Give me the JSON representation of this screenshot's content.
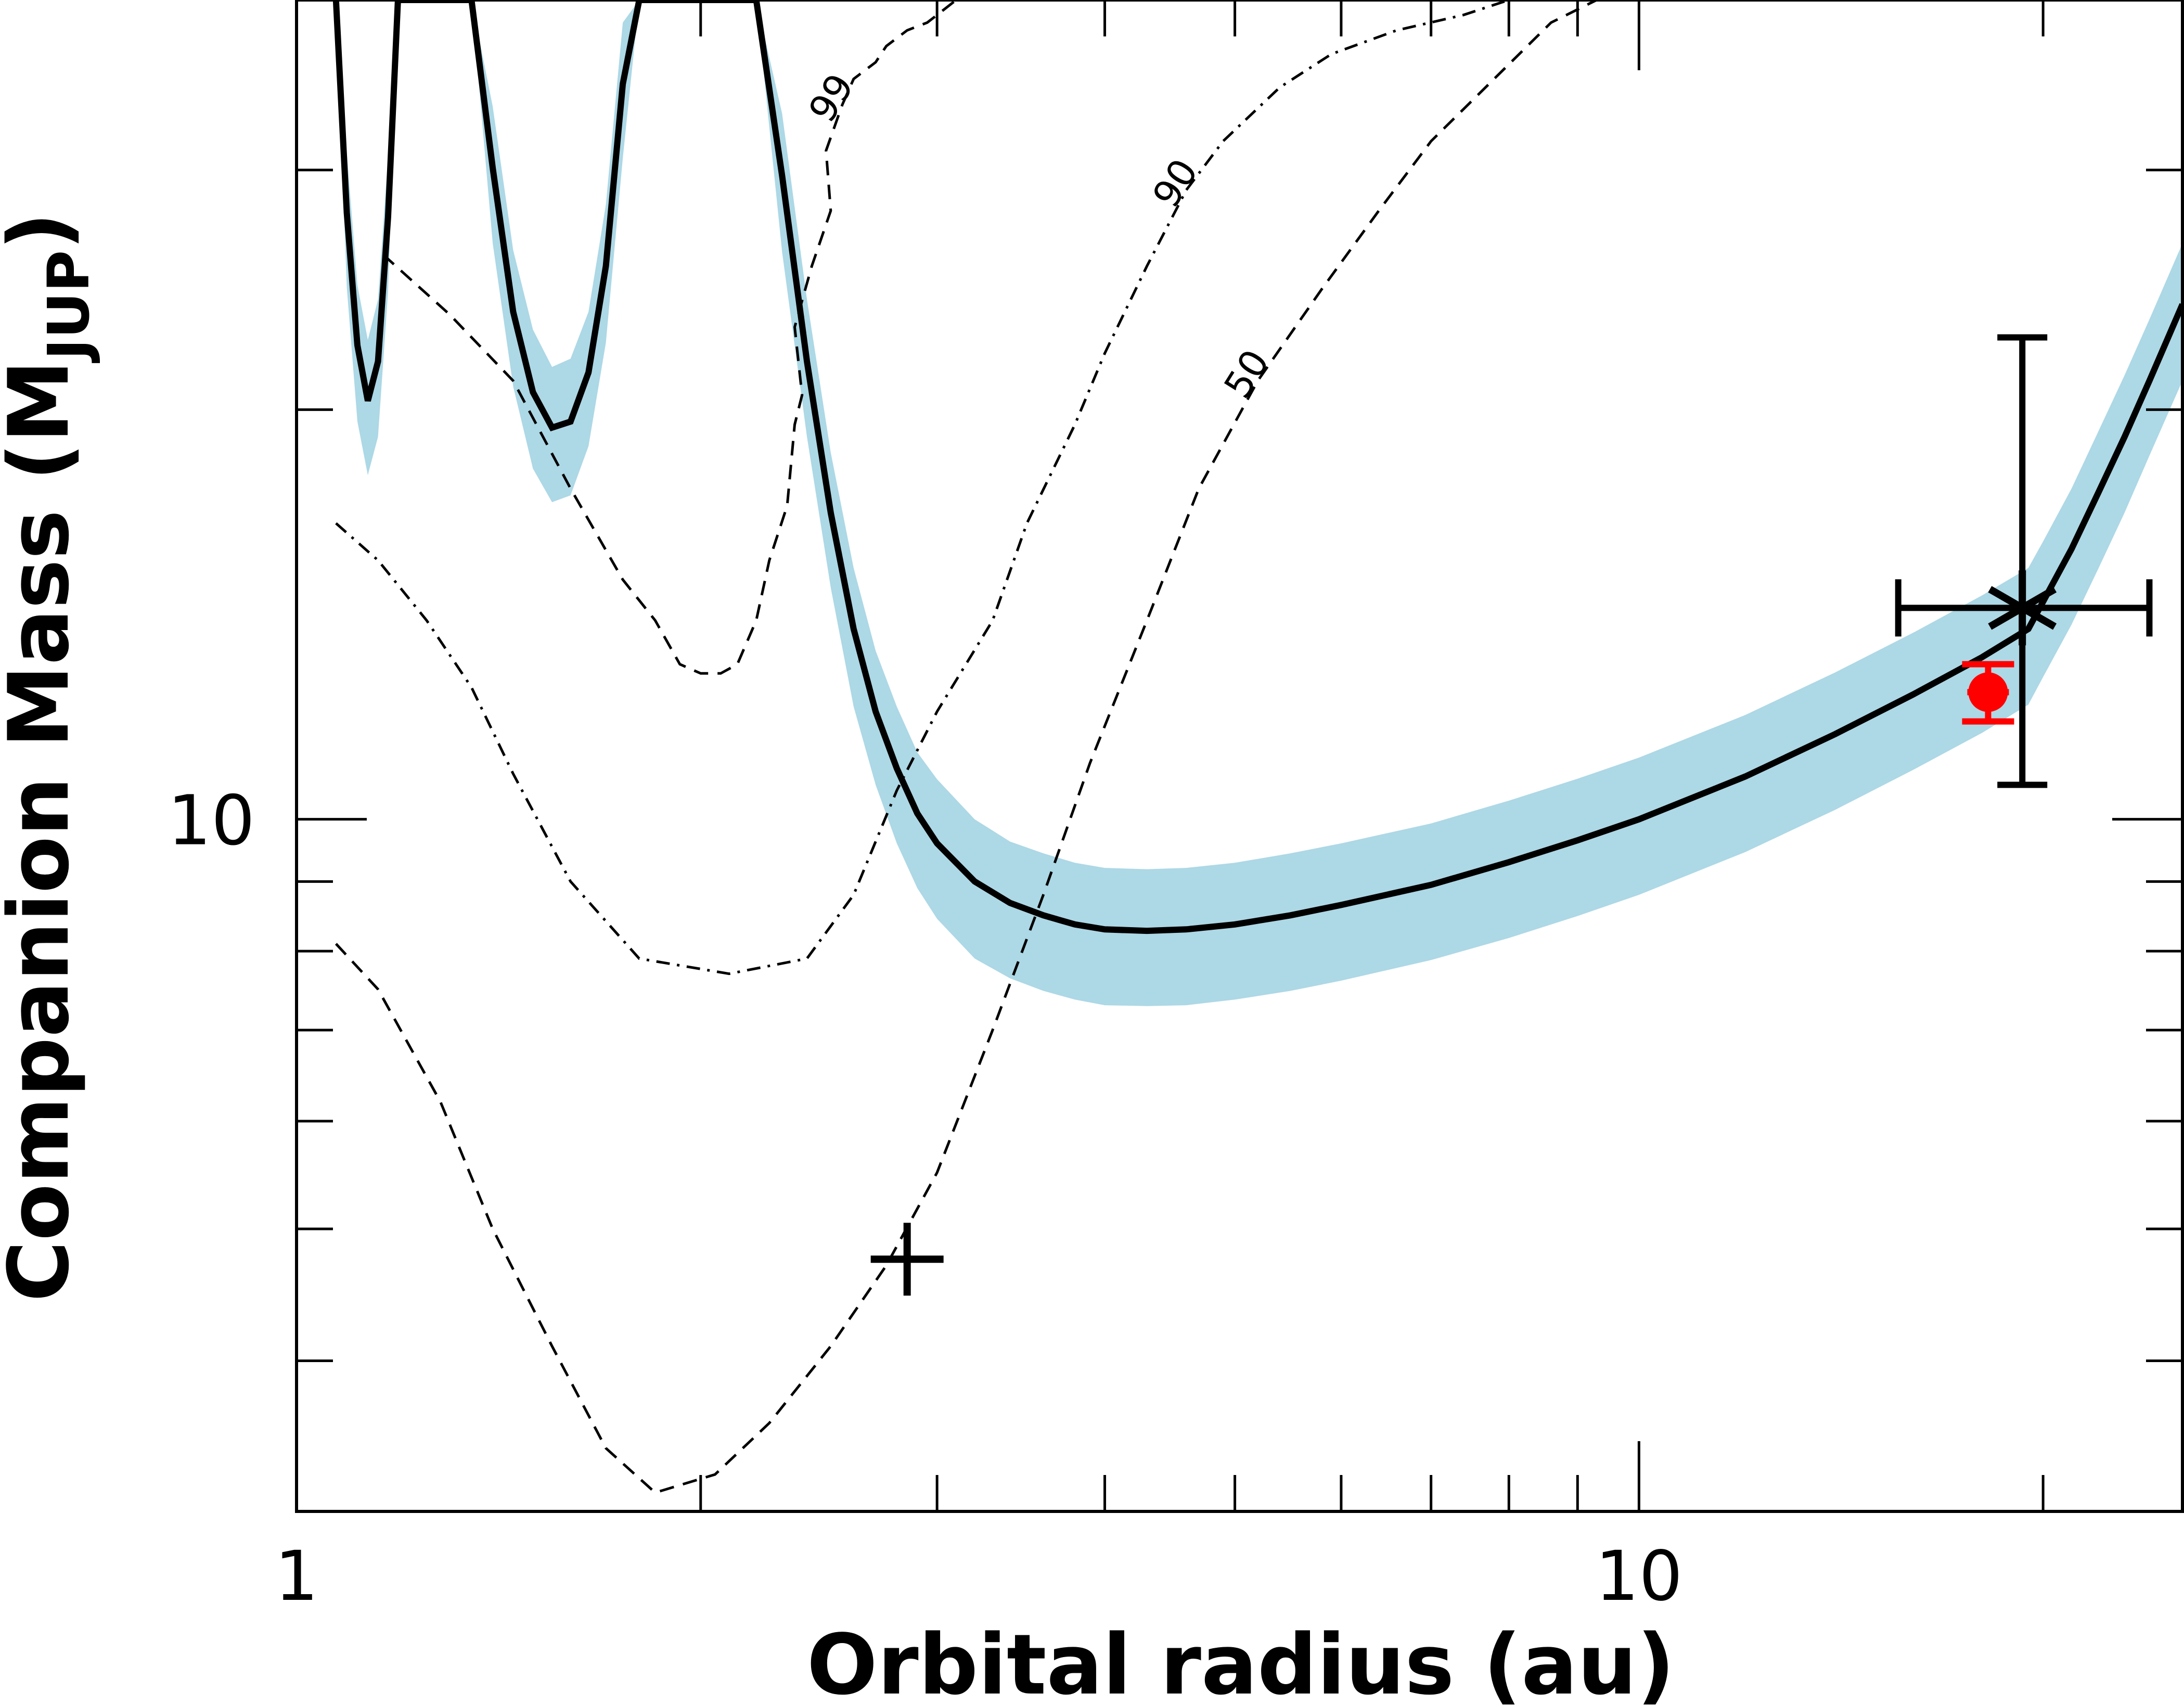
{
  "chart_data": {
    "type": "line",
    "title": "",
    "xlabel": "Orbital radius (au)",
    "ylabel_main": "Companion Mass (M",
    "ylabel_sub": "JUP",
    "ylabel_close": ")",
    "xscale": "log",
    "yscale": "log",
    "xlim": [
      1,
      25.4
    ],
    "ylim": [
      3.1,
      40
    ],
    "x_ticks": [
      {
        "value": 1,
        "label": "1"
      },
      {
        "value": 10,
        "label": "10"
      }
    ],
    "x_minor_ticks": [
      2,
      3,
      4,
      5,
      6,
      7,
      8,
      9,
      20
    ],
    "y_ticks": [
      {
        "value": 10,
        "label": "10"
      }
    ],
    "y_minor_ticks": [
      4,
      5,
      6,
      7,
      8,
      9,
      20,
      30
    ],
    "grid": false,
    "legend": "none",
    "colors": {
      "band": "#add8e6",
      "curve": "#000000",
      "red_point": "#ff0000",
      "contour": "#000000"
    },
    "mass_radius_curve": {
      "x": [
        1.07,
        1.09,
        1.11,
        1.13,
        1.15,
        1.17,
        1.19,
        1.22,
        1.25,
        1.28,
        1.31,
        1.35,
        1.4,
        1.45,
        1.5,
        1.55,
        1.6,
        1.65,
        1.7,
        1.75,
        1.8,
        1.85,
        1.9,
        1.95,
        2.0,
        2.05,
        2.1,
        2.15,
        2.2,
        2.3,
        2.4,
        2.5,
        2.6,
        2.7,
        2.8,
        2.9,
        3.0,
        3.2,
        3.4,
        3.6,
        3.8,
        4.0,
        4.3,
        4.6,
        5.0,
        5.5,
        6.0,
        7.0,
        8.0,
        9.0,
        10.0,
        12.0,
        14.0,
        16.0,
        18.0,
        19.5,
        20.0,
        21.0,
        22.0,
        23.0,
        24.0,
        25.4
      ],
      "mass": [
        40.0,
        27.9,
        22.3,
        20.3,
        21.7,
        27.7,
        40.0,
        40.0,
        40.0,
        40.0,
        40.0,
        40.0,
        30.1,
        23.6,
        20.6,
        19.4,
        19.6,
        21.3,
        25.5,
        34.7,
        40.0,
        40.0,
        40.0,
        40.0,
        40.0,
        40.0,
        40.0,
        40.0,
        40.0,
        29.7,
        21.7,
        16.8,
        13.8,
        12.0,
        10.9,
        10.1,
        9.6,
        9.0,
        8.68,
        8.5,
        8.37,
        8.3,
        8.28,
        8.3,
        8.37,
        8.5,
        8.65,
        8.95,
        9.3,
        9.65,
        10.0,
        10.75,
        11.55,
        12.35,
        13.15,
        13.8,
        14.45,
        15.8,
        17.4,
        19.1,
        21.0,
        23.9
      ],
      "mass_low": [
        40.0,
        24.6,
        19.6,
        17.9,
        19.1,
        24.4,
        40.0,
        40.0,
        40.0,
        40.0,
        40.0,
        40.0,
        26.5,
        20.8,
        18.1,
        17.1,
        17.3,
        18.8,
        22.4,
        30.6,
        40.0,
        40.0,
        40.0,
        40.0,
        40.0,
        40.0,
        40.0,
        40.0,
        40.0,
        26.1,
        19.1,
        14.8,
        12.1,
        10.6,
        9.6,
        8.9,
        8.45,
        7.9,
        7.64,
        7.48,
        7.37,
        7.3,
        7.29,
        7.3,
        7.37,
        7.48,
        7.61,
        7.88,
        8.18,
        8.49,
        8.8,
        9.46,
        10.16,
        10.87,
        11.57,
        12.14,
        12.72,
        13.9,
        15.3,
        16.8,
        18.5,
        21.0
      ],
      "mass_high": [
        40.0,
        30.9,
        24.7,
        22.5,
        24.1,
        30.7,
        40.0,
        40.0,
        40.0,
        40.0,
        40.0,
        40.0,
        33.4,
        26.2,
        22.9,
        21.5,
        21.8,
        23.6,
        28.3,
        38.5,
        40.0,
        40.0,
        40.0,
        40.0,
        40.0,
        40.0,
        40.0,
        40.0,
        40.0,
        33.0,
        24.1,
        18.6,
        15.3,
        13.3,
        12.1,
        11.2,
        10.7,
        10.0,
        9.63,
        9.44,
        9.29,
        9.21,
        9.19,
        9.21,
        9.29,
        9.44,
        9.6,
        9.93,
        10.32,
        10.71,
        11.1,
        11.93,
        12.82,
        13.71,
        14.6,
        15.3,
        16.0,
        17.5,
        19.3,
        21.2,
        23.3,
        26.5
      ]
    },
    "detection_contours": [
      {
        "label": "99",
        "style": "dashed",
        "x": [
          1.16,
          1.3,
          1.45,
          1.6,
          1.75,
          1.85,
          1.93,
          2.0,
          2.07,
          2.13,
          2.2,
          2.25,
          2.32,
          2.35,
          2.38,
          2.35,
          2.42,
          2.5,
          2.48,
          2.55,
          2.6,
          2.7,
          2.75,
          2.85,
          2.95,
          3.0,
          3.1
        ],
        "mass": [
          26.0,
          23.5,
          21.0,
          17.5,
          15.0,
          14.0,
          13.0,
          12.8,
          12.8,
          13.0,
          14.0,
          15.5,
          17.0,
          19.5,
          20.5,
          23.0,
          25.5,
          28.0,
          31.0,
          33.5,
          35.0,
          36.0,
          37.0,
          38.0,
          38.5,
          39.0,
          40.0
        ]
      },
      {
        "label": "90",
        "style": "dashdot",
        "x": [
          1.07,
          1.15,
          1.25,
          1.35,
          1.45,
          1.6,
          1.8,
          2.1,
          2.4,
          2.6,
          2.8,
          3.0,
          3.3,
          3.5,
          3.8,
          4.0,
          4.3,
          4.6,
          4.9,
          5.4,
          5.9,
          6.6,
          7.4,
          8.0
        ],
        "mass": [
          16.5,
          15.5,
          14.0,
          12.5,
          10.8,
          9.0,
          7.9,
          7.7,
          7.9,
          8.8,
          10.5,
          12.0,
          14.0,
          16.5,
          19.5,
          22.0,
          25.5,
          29.0,
          31.5,
          34.5,
          36.5,
          38.0,
          39.0,
          40.0
        ]
      },
      {
        "label": "50",
        "style": "dashed",
        "x": [
          1.07,
          1.15,
          1.28,
          1.4,
          1.55,
          1.7,
          1.85,
          2.05,
          2.25,
          2.5,
          2.75,
          3.0,
          3.3,
          3.6,
          3.9,
          4.3,
          4.7,
          5.2,
          5.8,
          6.4,
          7.0,
          7.8,
          8.6,
          9.3
        ],
        "mass": [
          8.1,
          7.5,
          6.2,
          5.0,
          4.1,
          3.45,
          3.2,
          3.3,
          3.6,
          4.1,
          4.7,
          5.5,
          7.0,
          8.8,
          11.0,
          14.0,
          17.5,
          21.0,
          24.5,
          28.0,
          31.5,
          35.0,
          38.5,
          40.0
        ]
      }
    ],
    "markers": [
      {
        "kind": "star",
        "x": 19.3,
        "mass": 14.3,
        "xerr_low": 15.6,
        "xerr_high": 24.0,
        "yerr_low": 10.6,
        "yerr_high": 22.6
      },
      {
        "kind": "plus",
        "x": 2.85,
        "mass": 4.75
      },
      {
        "kind": "red-point",
        "x": 18.2,
        "mass": 12.4,
        "yerr_low": 11.8,
        "yerr_high": 13.0
      }
    ]
  }
}
